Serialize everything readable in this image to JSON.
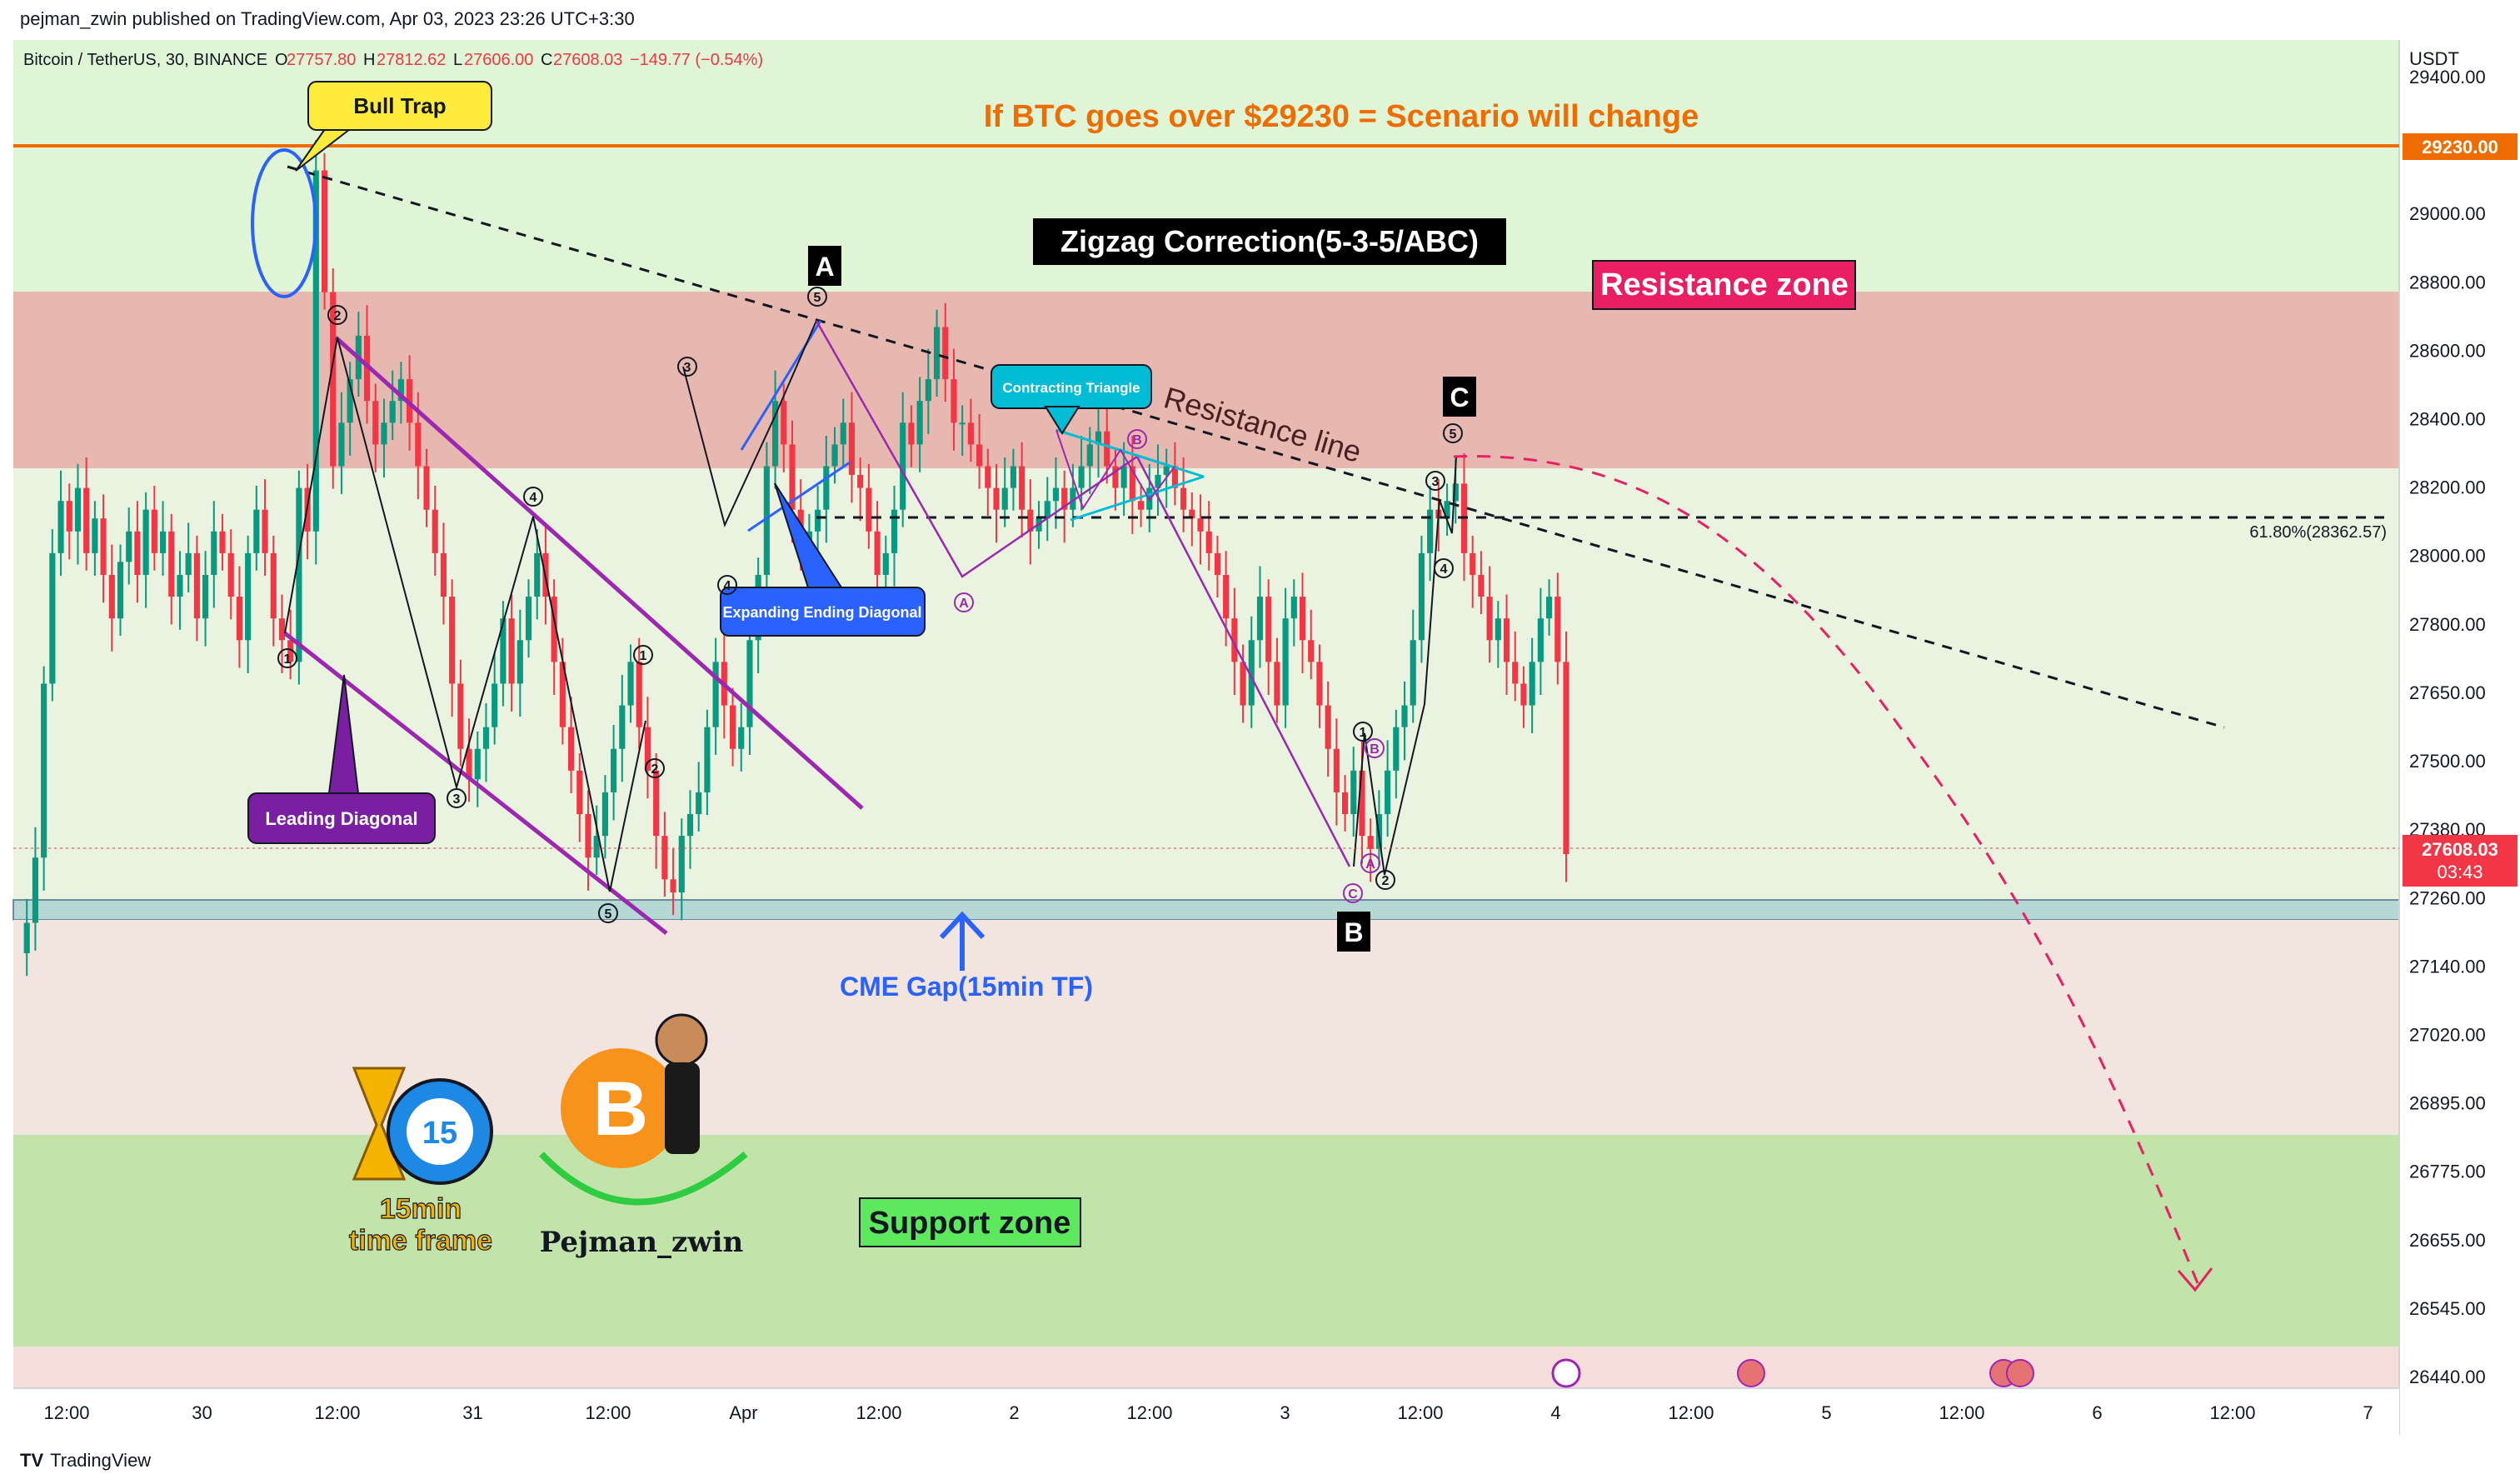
{
  "header": {
    "published_by": "pejman_zwin published on TradingView.com, Apr 03, 2023 23:26 UTC+3:30",
    "symbol": "Bitcoin / TetherUS, 30, BINANCE",
    "open_label": "O",
    "open": "27757.80",
    "high_label": "H",
    "high": "27812.62",
    "low_label": "L",
    "low": "27606.00",
    "close_label": "C",
    "close": "27608.03",
    "change": "−149.77 (−0.54%)"
  },
  "footer": {
    "brand": "TradingView"
  },
  "colors": {
    "up": "#089981",
    "down": "#f23645",
    "candle": "#131722",
    "resistance_zone": "#e6b8b0",
    "support_zone": "#c2e3aa",
    "top_zone": "#e0f5d6",
    "mid_zone": "#f2e4df",
    "gap_band": "#b5d8d5",
    "diagonal": "#9c27b0",
    "blue": "#2962ff",
    "orange": "#ef6c00",
    "pink_dash": "#e91e63"
  },
  "chart_data": {
    "type": "candlestick",
    "title": "",
    "y_unit": "USDT",
    "ylim": [
      26380,
      29480
    ],
    "y_ticks": [
      "29400.00",
      "29200.00",
      "29000.00",
      "28800.00",
      "28600.00",
      "28400.00",
      "28200.00",
      "28000.00",
      "27800.00",
      "27650.00",
      "27500.00",
      "27380.00",
      "27260.00",
      "27140.00",
      "27020.00",
      "26895.00",
      "26775.00",
      "26655.00",
      "26545.00",
      "26440.00"
    ],
    "x_ticks": [
      "12:00",
      "30",
      "12:00",
      "31",
      "12:00",
      "Apr",
      "12:00",
      "2",
      "12:00",
      "3",
      "12:00",
      "4",
      "12:00",
      "5",
      "12:00",
      "6",
      "12:00",
      "7"
    ],
    "last_price": "27608.03",
    "countdown": "03:43",
    "level_price": "29230.00",
    "fib_label": "61.80%(28362.57)",
    "price_path": [
      27380,
      27450,
      27600,
      28000,
      28300,
      28420,
      28350,
      28450,
      28300,
      28380,
      28250,
      28150,
      28280,
      28350,
      28250,
      28400,
      28300,
      28350,
      28200,
      28250,
      28300,
      28150,
      28250,
      28350,
      28300,
      28200,
      28100,
      28300,
      28400,
      28300,
      28150,
      28100,
      28050,
      28450,
      28350,
      29180,
      28900,
      28500,
      28600,
      28700,
      28800,
      28650,
      28550,
      28600,
      28650,
      28700,
      28600,
      28500,
      28400,
      28300,
      28200,
      28000,
      27850,
      27780,
      27850,
      27900,
      28000,
      28150,
      28000,
      28100,
      28200,
      28300,
      28200,
      28050,
      27900,
      27800,
      27700,
      27600,
      27650,
      27750,
      27850,
      27950,
      28050,
      27900,
      27800,
      27650,
      27550,
      27520,
      27650,
      27700,
      27750,
      27900,
      28050,
      27950,
      27850,
      27900,
      28100,
      28250,
      28500,
      28650,
      28550,
      28400,
      28300,
      28350,
      28400,
      28500,
      28550,
      28600,
      28480,
      28450,
      28350,
      28250,
      28300,
      28400,
      28600,
      28550,
      28650,
      28700,
      28820,
      28700,
      28600,
      28600,
      28550,
      28500,
      28450,
      28400,
      28450,
      28500,
      28400,
      28350,
      28380,
      28420,
      28450,
      28400,
      28450,
      28500,
      28550,
      28580,
      28500,
      28450,
      28500,
      28420,
      28400,
      28450,
      28480,
      28500,
      28450,
      28400,
      28380,
      28350,
      28300,
      28250,
      28150,
      28050,
      27950,
      28100,
      28200,
      28050,
      27950,
      28150,
      28200,
      28100,
      28050,
      27950,
      27850,
      27750,
      27700,
      27800,
      27650,
      27620,
      27700,
      27800,
      27900,
      27950,
      28100,
      28300,
      28400,
      28380,
      28420,
      28460,
      28300,
      28250,
      28200,
      28100,
      28150,
      28050,
      28000,
      27950,
      28050,
      28150,
      28200,
      28050,
      27608
    ]
  },
  "annotations": {
    "scenario": "If BTC goes over $29230 = Scenario will change",
    "bull_trap": "Bull Trap",
    "zigzag": "Zigzag Correction(5-3-5/ABC)",
    "resistance_zone": "Resistance zone",
    "resistance_line": "Resistance line",
    "support_zone": "Support zone",
    "cme_gap": "CME Gap(15min TF)",
    "leading_diagonal": "Leading Diagonal",
    "expanding_diagonal": "Expanding Ending Diagonal",
    "contracting_triangle": "Contracting Triangle",
    "wave_a": "A",
    "wave_b": "B",
    "wave_c": "C",
    "logo_tf_number": "15",
    "logo_tf_line1": "15min",
    "logo_tf_line2": "time frame",
    "logo_btc": "B",
    "logo_author": "Pejman_zwin",
    "wave_labels": [
      {
        "t": "1",
        "p": "c1"
      },
      {
        "t": "2",
        "p": "c2"
      },
      {
        "t": "3",
        "p": "c3"
      },
      {
        "t": "4",
        "p": "c4"
      },
      {
        "t": "5",
        "p": "c5"
      },
      {
        "t": "1",
        "p": "d1"
      },
      {
        "t": "2",
        "p": "d2"
      },
      {
        "t": "3",
        "p": "d3"
      },
      {
        "t": "4",
        "p": "d4"
      },
      {
        "t": "5",
        "p": "d5"
      },
      {
        "t": "A",
        "p": "t1"
      },
      {
        "t": "B",
        "p": "t2"
      },
      {
        "t": "1",
        "p": "e1"
      },
      {
        "t": "B",
        "p": "e2"
      },
      {
        "t": "A",
        "p": "e3"
      },
      {
        "t": "C",
        "p": "e4"
      },
      {
        "t": "2",
        "p": "e5"
      },
      {
        "t": "3",
        "p": "f1"
      },
      {
        "t": "4",
        "p": "f2"
      },
      {
        "t": "5",
        "p": "f3"
      }
    ]
  }
}
